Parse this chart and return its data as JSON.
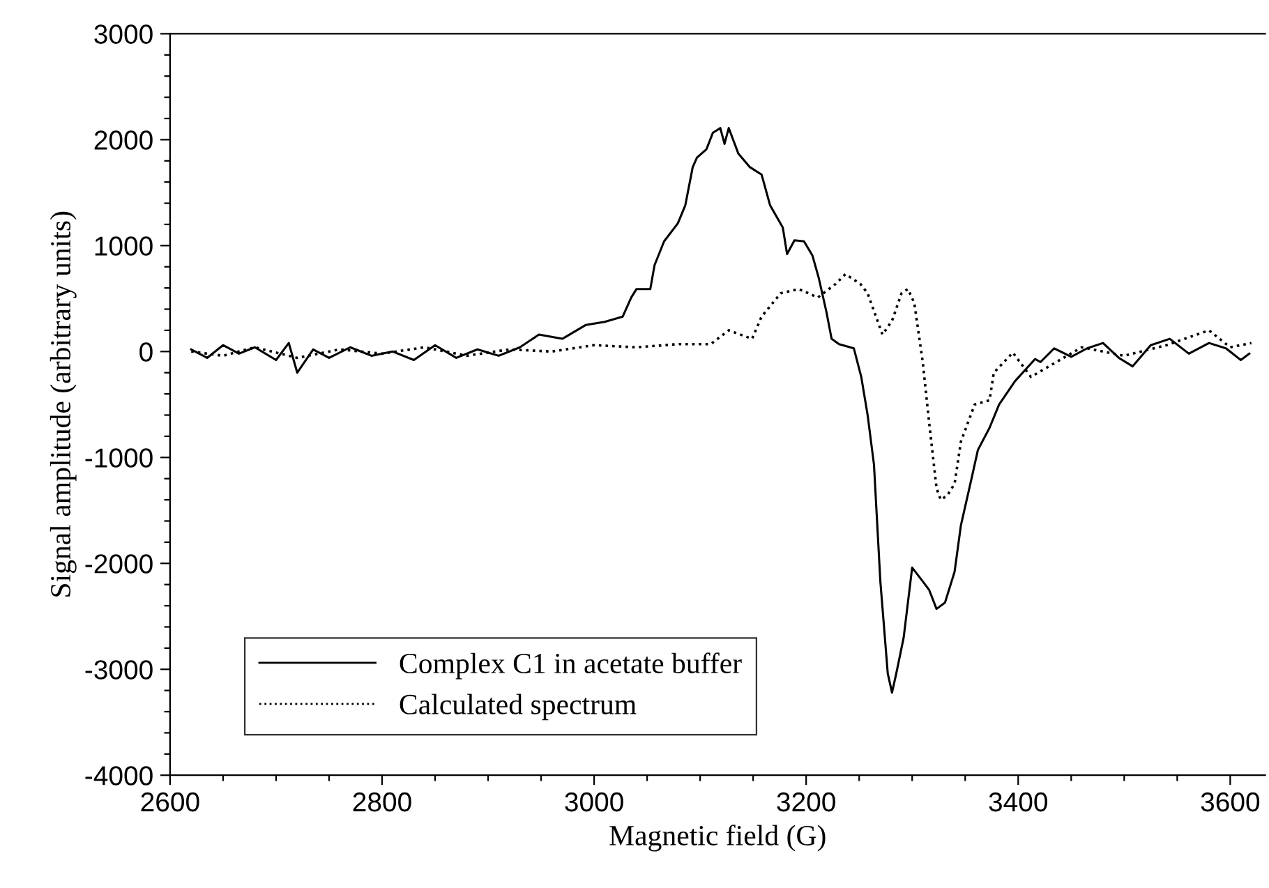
{
  "chart_data": {
    "type": "line",
    "xlabel": "Magnetic field (G)",
    "ylabel": "Signal amplitude (arbitrary units)",
    "xlim": [
      2600,
      3633
    ],
    "ylim": [
      -4000,
      3000
    ],
    "xticks": [
      2600,
      {
        "value": 2650,
        "label": null
      },
      {
        "value": 2700,
        "label": null
      },
      {
        "value": 2750,
        "label": null
      },
      2800,
      {
        "value": 2850,
        "label": null
      },
      {
        "value": 2900,
        "label": null
      },
      {
        "value": 2950,
        "label": null
      },
      3000,
      {
        "value": 3050,
        "label": null
      },
      {
        "value": 3100,
        "label": null
      },
      {
        "value": 3150,
        "label": null
      },
      3200,
      {
        "value": 3250,
        "label": null
      },
      {
        "value": 3300,
        "label": null
      },
      {
        "value": 3350,
        "label": null
      },
      3400,
      {
        "value": 3450,
        "label": null
      },
      {
        "value": 3500,
        "label": null
      },
      {
        "value": 3550,
        "label": null
      },
      3600
    ],
    "yticks": [
      -4000,
      {
        "value": -3800,
        "label": null
      },
      {
        "value": -3600,
        "label": null
      },
      {
        "value": -3400,
        "label": null
      },
      {
        "value": -3200,
        "label": null
      },
      -3000,
      {
        "value": -2800,
        "label": null
      },
      {
        "value": -2600,
        "label": null
      },
      {
        "value": -2400,
        "label": null
      },
      {
        "value": -2200,
        "label": null
      },
      -2000,
      {
        "value": -1800,
        "label": null
      },
      {
        "value": -1600,
        "label": null
      },
      {
        "value": -1400,
        "label": null
      },
      {
        "value": -1200,
        "label": null
      },
      -1000,
      {
        "value": -800,
        "label": null
      },
      {
        "value": -600,
        "label": null
      },
      {
        "value": -400,
        "label": null
      },
      {
        "value": -200,
        "label": null
      },
      0,
      {
        "value": 200,
        "label": null
      },
      {
        "value": 400,
        "label": null
      },
      {
        "value": 600,
        "label": null
      },
      {
        "value": 800,
        "label": null
      },
      1000,
      {
        "value": 1200,
        "label": null
      },
      {
        "value": 1400,
        "label": null
      },
      {
        "value": 1600,
        "label": null
      },
      {
        "value": 1800,
        "label": null
      },
      2000,
      {
        "value": 2200,
        "label": null
      },
      {
        "value": 2400,
        "label": null
      },
      {
        "value": 2600,
        "label": null
      },
      {
        "value": 2800,
        "label": null
      },
      3000
    ],
    "grid": false,
    "legend": "bottom left",
    "marker": "none",
    "series": [
      {
        "name": "Complex C1 in acetate buffer",
        "color": "#000000",
        "line_style": "solid",
        "x": [
          2620,
          2635,
          2650,
          2665,
          2680,
          2700,
          2712,
          2720,
          2735,
          2750,
          2770,
          2790,
          2810,
          2830,
          2850,
          2870,
          2890,
          2910,
          2930,
          2948,
          2970,
          2992,
          3010,
          3027,
          3035,
          3040,
          3053,
          3057,
          3066,
          3079,
          3086,
          3093,
          3097,
          3106,
          3112,
          3119,
          3123,
          3127,
          3136,
          3147,
          3158,
          3166,
          3178,
          3182,
          3189,
          3198,
          3206,
          3212,
          3219,
          3224,
          3231,
          3245,
          3252,
          3258,
          3264,
          3270,
          3277,
          3281,
          3285,
          3292,
          3300,
          3310,
          3316,
          3323,
          3331,
          3340,
          3346,
          3356,
          3362,
          3373,
          3382,
          3397,
          3416,
          3421,
          3434,
          3450,
          3465,
          3480,
          3495,
          3508,
          3525,
          3543,
          3561,
          3580,
          3596,
          3610,
          3618
        ],
        "values": [
          20,
          -60,
          60,
          -20,
          40,
          -80,
          80,
          -200,
          20,
          -60,
          40,
          -40,
          0,
          -80,
          60,
          -60,
          20,
          -40,
          40,
          160,
          120,
          250,
          280,
          330,
          510,
          590,
          590,
          815,
          1040,
          1210,
          1380,
          1740,
          1830,
          1910,
          2065,
          2110,
          1960,
          2110,
          1870,
          1740,
          1670,
          1380,
          1170,
          920,
          1050,
          1040,
          905,
          690,
          380,
          120,
          70,
          30,
          -240,
          -600,
          -1070,
          -2170,
          -3040,
          -3220,
          -3040,
          -2700,
          -2040,
          -2170,
          -2250,
          -2430,
          -2370,
          -2080,
          -1640,
          -1200,
          -930,
          -720,
          -500,
          -280,
          -70,
          -100,
          30,
          -50,
          30,
          80,
          -60,
          -140,
          60,
          120,
          -20,
          80,
          30,
          -80,
          -20
        ]
      },
      {
        "name": "Calculated spectrum",
        "color": "#000000",
        "line_style": "dotted",
        "x": [
          2620,
          2650,
          2680,
          2720,
          2760,
          2800,
          2840,
          2880,
          2920,
          2960,
          3000,
          3040,
          3080,
          3110,
          3127,
          3149,
          3158,
          3176,
          3193,
          3211,
          3228,
          3237,
          3251,
          3258,
          3272,
          3281,
          3290,
          3296,
          3302,
          3310,
          3316,
          3323,
          3327,
          3333,
          3340,
          3346,
          3359,
          3373,
          3377,
          3395,
          3412,
          3429,
          3460,
          3500,
          3540,
          3580,
          3600,
          3620
        ],
        "values": [
          0,
          -40,
          40,
          -60,
          20,
          -20,
          40,
          -40,
          20,
          0,
          60,
          40,
          70,
          70,
          200,
          120,
          330,
          550,
          590,
          510,
          640,
          730,
          640,
          550,
          160,
          290,
          550,
          590,
          460,
          -100,
          -670,
          -1290,
          -1400,
          -1360,
          -1250,
          -850,
          -500,
          -460,
          -200,
          -10,
          -240,
          -140,
          40,
          -40,
          60,
          200,
          40,
          80
        ]
      }
    ]
  }
}
